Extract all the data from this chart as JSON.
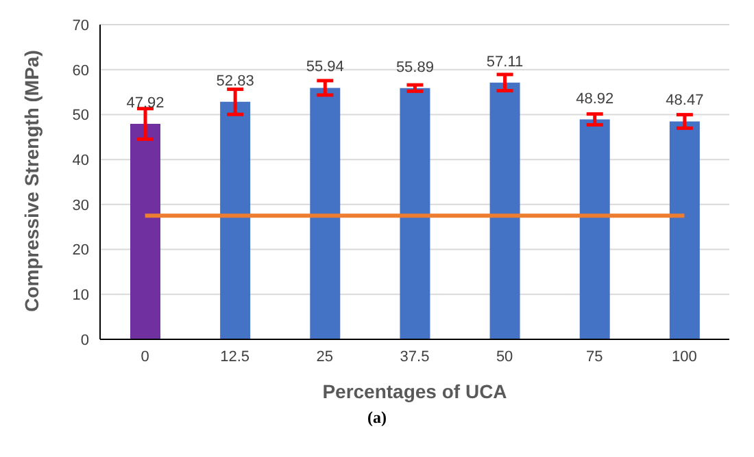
{
  "chart_data": {
    "type": "bar",
    "xlabel": "Percentages of UCA",
    "ylabel": "Compressive Strength (MPa)",
    "categories": [
      "0",
      "12.5",
      "25",
      "37.5",
      "50",
      "75",
      "100"
    ],
    "series": [
      {
        "values": [
          47.92,
          52.83,
          55.94,
          55.89,
          57.11,
          48.92,
          48.47
        ],
        "value_labels": [
          "47.92",
          "52.83",
          "55.94",
          "55.89",
          "57.11",
          "48.92",
          "48.47"
        ],
        "colors": [
          "#7030a0",
          "#4472c4",
          "#4472c4",
          "#4472c4",
          "#4472c4",
          "#4472c4",
          "#4472c4"
        ],
        "errors": [
          3.4,
          2.8,
          1.6,
          0.7,
          1.8,
          1.2,
          1.5
        ]
      },
      {
        "type": "line",
        "values": [
          27.5,
          27.5,
          27.5,
          27.5,
          27.5,
          27.5,
          27.5
        ],
        "color": "#ed7d31",
        "marker": "none"
      }
    ],
    "ylim": [
      0,
      70
    ],
    "yticks": [
      0,
      10,
      20,
      30,
      40,
      50,
      60,
      70
    ],
    "grid": "y",
    "legend": false,
    "annotations": [
      "(a)"
    ]
  }
}
